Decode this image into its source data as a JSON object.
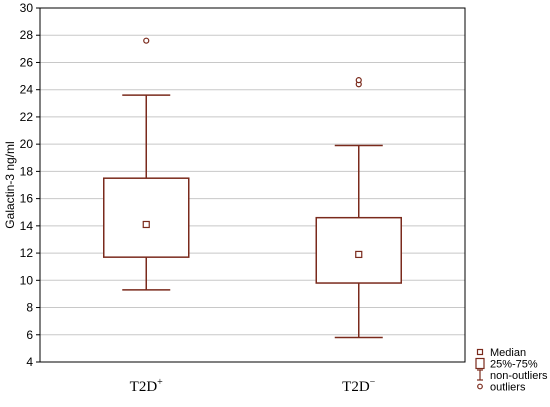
{
  "chart_data": {
    "type": "box",
    "ylabel": "Galactin-3 ng/ml",
    "ylim": [
      4,
      30
    ],
    "yticks": [
      4,
      6,
      8,
      10,
      12,
      14,
      16,
      18,
      20,
      22,
      24,
      26,
      28,
      30
    ],
    "grid": true,
    "categories": [
      {
        "base": "T2D",
        "sup": "+"
      },
      {
        "base": "T2D",
        "sup": "−"
      }
    ],
    "boxes": [
      {
        "median": 14.1,
        "q1": 11.7,
        "q3": 17.5,
        "whisker_low": 9.3,
        "whisker_high": 23.6,
        "outliers": [
          27.6
        ]
      },
      {
        "median": 11.9,
        "q1": 9.8,
        "q3": 14.6,
        "whisker_low": 5.8,
        "whisker_high": 19.9,
        "outliers": [
          24.4,
          24.7
        ]
      }
    ],
    "legend": {
      "position": "bottom-right",
      "items": [
        {
          "symbol": "median",
          "label": "Median"
        },
        {
          "symbol": "box",
          "label": "25%-75%"
        },
        {
          "symbol": "whisker",
          "label": "non-outliers"
        },
        {
          "symbol": "outlier",
          "label": "outliers"
        }
      ]
    },
    "colors": {
      "box": "#7a2a1c",
      "grid": "#c8c8c8",
      "axis": "#000000"
    }
  }
}
